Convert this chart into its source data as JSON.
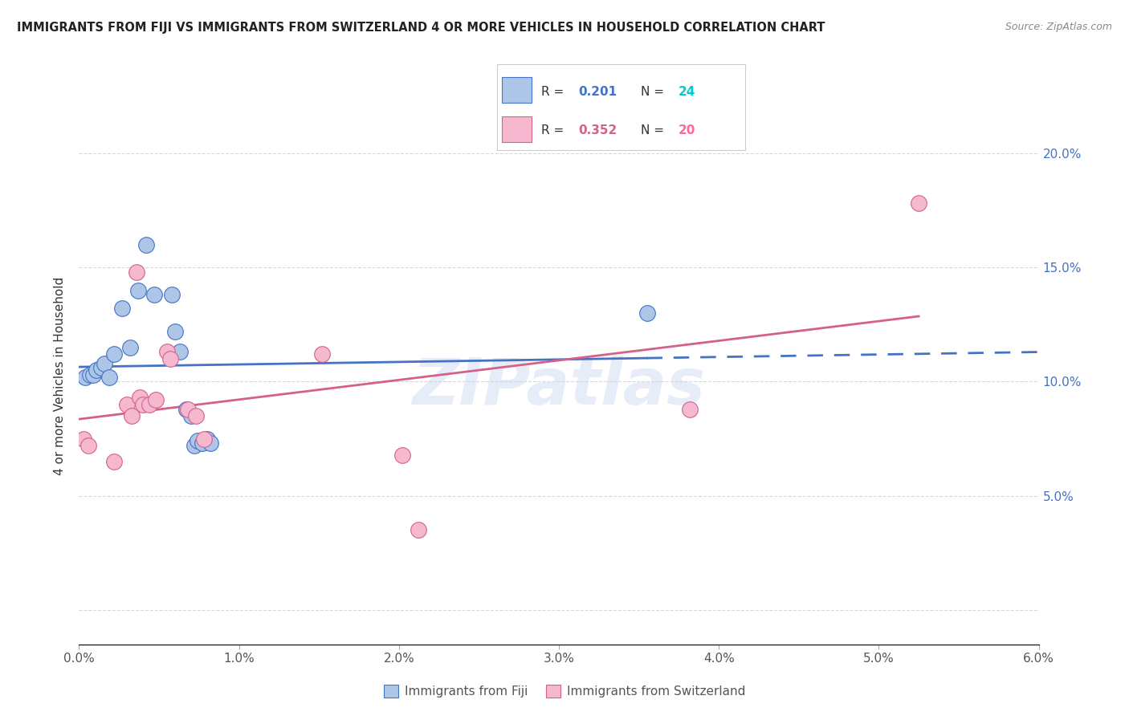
{
  "title": "IMMIGRANTS FROM FIJI VS IMMIGRANTS FROM SWITZERLAND 4 OR MORE VEHICLES IN HOUSEHOLD CORRELATION CHART",
  "source": "Source: ZipAtlas.com",
  "ylabel": "4 or more Vehicles in Household",
  "fiji_R": 0.201,
  "fiji_N": 24,
  "swiss_R": 0.352,
  "swiss_N": 20,
  "fiji_color": "#adc6e8",
  "swiss_color": "#f5b8ce",
  "fiji_line_color": "#4472c4",
  "swiss_line_color": "#d4618a",
  "fiji_dots": [
    [
      0.04,
      10.2
    ],
    [
      0.07,
      10.3
    ],
    [
      0.09,
      10.3
    ],
    [
      0.11,
      10.5
    ],
    [
      0.14,
      10.6
    ],
    [
      0.16,
      10.8
    ],
    [
      0.19,
      10.2
    ],
    [
      0.22,
      11.2
    ],
    [
      0.27,
      13.2
    ],
    [
      0.32,
      11.5
    ],
    [
      0.37,
      14.0
    ],
    [
      0.42,
      16.0
    ],
    [
      0.47,
      13.8
    ],
    [
      0.58,
      13.8
    ],
    [
      0.6,
      12.2
    ],
    [
      0.63,
      11.3
    ],
    [
      0.67,
      8.8
    ],
    [
      0.7,
      8.5
    ],
    [
      0.72,
      7.2
    ],
    [
      0.74,
      7.4
    ],
    [
      0.77,
      7.3
    ],
    [
      0.8,
      7.5
    ],
    [
      0.82,
      7.3
    ],
    [
      3.55,
      13.0
    ]
  ],
  "swiss_dots": [
    [
      0.03,
      7.5
    ],
    [
      0.06,
      7.2
    ],
    [
      0.22,
      6.5
    ],
    [
      0.3,
      9.0
    ],
    [
      0.33,
      8.5
    ],
    [
      0.36,
      14.8
    ],
    [
      0.38,
      9.3
    ],
    [
      0.4,
      9.0
    ],
    [
      0.44,
      9.0
    ],
    [
      0.48,
      9.2
    ],
    [
      0.55,
      11.3
    ],
    [
      0.57,
      11.0
    ],
    [
      0.68,
      8.8
    ],
    [
      0.73,
      8.5
    ],
    [
      0.78,
      7.5
    ],
    [
      1.52,
      11.2
    ],
    [
      2.02,
      6.8
    ],
    [
      2.12,
      3.5
    ],
    [
      3.82,
      8.8
    ],
    [
      5.25,
      17.8
    ]
  ],
  "xlim": [
    0.0,
    6.0
  ],
  "ylim": [
    -1.5,
    22.0
  ],
  "ytick_vals": [
    0.0,
    5.0,
    10.0,
    15.0,
    20.0
  ],
  "xtick_vals": [
    0.0,
    1.0,
    2.0,
    3.0,
    4.0,
    5.0,
    6.0
  ],
  "watermark": "ZIPatlas",
  "background_color": "#ffffff",
  "grid_color": "#d8d8d8"
}
